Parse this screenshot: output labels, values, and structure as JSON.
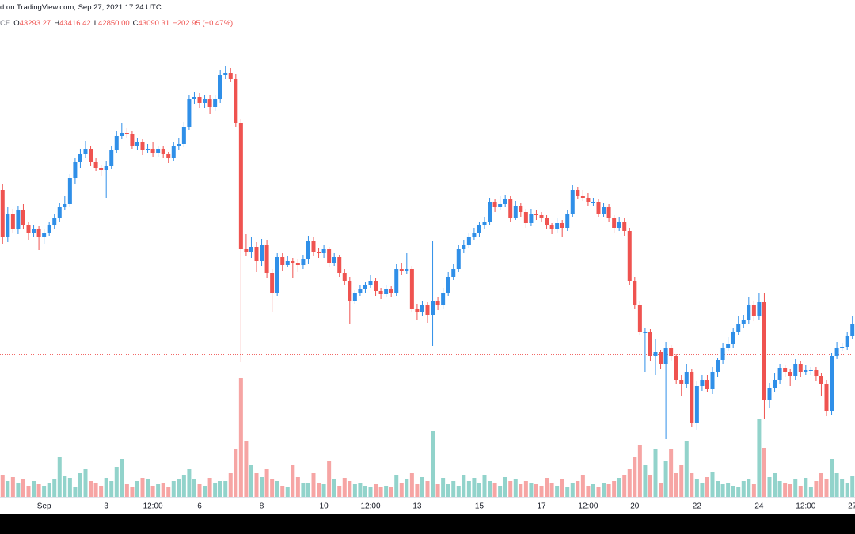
{
  "chart_data": {
    "type": "candlestick",
    "source_line": "d on TradingView.com, Sep 27, 2021 17:24 UTC",
    "symbol": "CE",
    "legend": [
      {
        "key": "O",
        "value": "43293.27"
      },
      {
        "key": "H",
        "value": "43416.42"
      },
      {
        "key": "L",
        "value": "42850.00"
      },
      {
        "key": "C",
        "value": "43090.31"
      }
    ],
    "change": "−202.95 (−0.47%)",
    "last_price": 43090.31,
    "ylim": [
      39300,
      54300
    ],
    "volume_ylim": [
      0,
      160
    ],
    "up_color": "#2f8fe8",
    "down_color": "#ef5350",
    "volume_up_color": "#92d3cb",
    "volume_down_color": "#f6a5a4",
    "categories": [
      null,
      null,
      null,
      null,
      null,
      null,
      null,
      null,
      "Sep",
      null,
      null,
      null,
      null,
      null,
      null,
      null,
      null,
      null,
      null,
      null,
      "3",
      null,
      null,
      null,
      null,
      null,
      null,
      null,
      null,
      "12:00",
      null,
      null,
      null,
      null,
      null,
      null,
      null,
      null,
      "6",
      null,
      null,
      null,
      null,
      null,
      null,
      null,
      null,
      null,
      null,
      null,
      "8",
      null,
      null,
      null,
      null,
      null,
      null,
      null,
      null,
      null,
      null,
      null,
      "10",
      null,
      null,
      null,
      null,
      null,
      null,
      null,
      null,
      "12:00",
      null,
      null,
      null,
      null,
      null,
      null,
      null,
      null,
      "13",
      null,
      null,
      null,
      null,
      null,
      null,
      null,
      null,
      null,
      null,
      null,
      "15",
      null,
      null,
      null,
      null,
      null,
      null,
      null,
      null,
      null,
      null,
      null,
      "17",
      null,
      null,
      null,
      null,
      null,
      null,
      null,
      null,
      "12:00",
      null,
      null,
      null,
      null,
      null,
      null,
      null,
      null,
      "20",
      null,
      null,
      null,
      null,
      null,
      null,
      null,
      null,
      null,
      null,
      null,
      "22",
      null,
      null,
      null,
      null,
      null,
      null,
      null,
      null,
      null,
      null,
      null,
      "24",
      null,
      null,
      null,
      null,
      null,
      null,
      null,
      null,
      "12:00",
      null,
      null,
      null,
      null,
      null,
      null,
      null,
      null,
      "27"
    ],
    "ohlc": [
      [
        48300,
        48500,
        46600,
        46800
      ],
      [
        46800,
        47750,
        46650,
        47550
      ],
      [
        47550,
        47700,
        46950,
        47050
      ],
      [
        47050,
        47800,
        46900,
        47675
      ],
      [
        47675,
        47850,
        47050,
        47175
      ],
      [
        47175,
        47300,
        46700,
        46925
      ],
      [
        46925,
        47200,
        46800,
        47050
      ],
      [
        47050,
        47150,
        46400,
        46800
      ],
      [
        46800,
        47050,
        46600,
        46925
      ],
      [
        46925,
        47300,
        46850,
        47175
      ],
      [
        47175,
        47550,
        47050,
        47425
      ],
      [
        47425,
        47900,
        47300,
        47750
      ],
      [
        47750,
        48100,
        47650,
        47850
      ],
      [
        47850,
        48800,
        47750,
        48675
      ],
      [
        48675,
        49300,
        48500,
        49175
      ],
      [
        49175,
        49600,
        49000,
        49425
      ],
      [
        49425,
        49850,
        49300,
        49600
      ],
      [
        49600,
        49700,
        49050,
        49175
      ],
      [
        49175,
        49300,
        48900,
        49000
      ],
      [
        49000,
        49100,
        48750,
        48925
      ],
      [
        48925,
        49200,
        48050,
        49050
      ],
      [
        49050,
        49700,
        48950,
        49550
      ],
      [
        49550,
        50150,
        49450,
        50000
      ],
      [
        50000,
        50425,
        49900,
        50100
      ],
      [
        50100,
        50250,
        49950,
        50050
      ],
      [
        50050,
        50150,
        49600,
        49675
      ],
      [
        49675,
        49950,
        49550,
        49800
      ],
      [
        49800,
        49900,
        49400,
        49550
      ],
      [
        49550,
        49750,
        49450,
        49600
      ],
      [
        49600,
        49800,
        49350,
        49475
      ],
      [
        49475,
        49700,
        49350,
        49600
      ],
      [
        49600,
        49700,
        49300,
        49425
      ],
      [
        49425,
        49500,
        49150,
        49300
      ],
      [
        49300,
        49800,
        49200,
        49675
      ],
      [
        49675,
        49950,
        49550,
        49750
      ],
      [
        49750,
        50450,
        49650,
        50300
      ],
      [
        50300,
        51300,
        50200,
        51175
      ],
      [
        51175,
        51400,
        51000,
        51250
      ],
      [
        51250,
        51350,
        50900,
        51050
      ],
      [
        51050,
        51300,
        50900,
        51175
      ],
      [
        51175,
        51300,
        50700,
        50925
      ],
      [
        50925,
        51300,
        50800,
        51175
      ],
      [
        51175,
        52100,
        51050,
        51925
      ],
      [
        51925,
        52225,
        51800,
        52000
      ],
      [
        52000,
        52150,
        51700,
        51800
      ],
      [
        51800,
        51950,
        50300,
        50425
      ],
      [
        50425,
        50550,
        42875,
        46425
      ],
      [
        46425,
        46900,
        46200,
        46350
      ],
      [
        46350,
        46800,
        46150,
        46500
      ],
      [
        46500,
        46650,
        45700,
        46050
      ],
      [
        46050,
        46750,
        45900,
        46550
      ],
      [
        46550,
        46700,
        45500,
        45675
      ],
      [
        45675,
        45800,
        44450,
        45050
      ],
      [
        45050,
        46300,
        44950,
        46175
      ],
      [
        46175,
        46300,
        45750,
        45925
      ],
      [
        45925,
        46200,
        45850,
        46050
      ],
      [
        46050,
        46150,
        45500,
        46000
      ],
      [
        46000,
        46100,
        45700,
        45925
      ],
      [
        45925,
        46250,
        45800,
        46100
      ],
      [
        46100,
        46850,
        45950,
        46675
      ],
      [
        46675,
        46800,
        46200,
        46350
      ],
      [
        46350,
        46450,
        46150,
        46300
      ],
      [
        46300,
        46550,
        46150,
        46425
      ],
      [
        46425,
        46500,
        45850,
        46000
      ],
      [
        46000,
        46300,
        45900,
        46175
      ],
      [
        46175,
        46250,
        45550,
        45675
      ],
      [
        45675,
        45800,
        45300,
        45425
      ],
      [
        45425,
        45550,
        44050,
        44800
      ],
      [
        44800,
        45150,
        44700,
        45050
      ],
      [
        45050,
        45300,
        44950,
        45175
      ],
      [
        45175,
        45400,
        45050,
        45300
      ],
      [
        45300,
        45600,
        45200,
        45425
      ],
      [
        45425,
        45500,
        44950,
        45100
      ],
      [
        45100,
        45200,
        44850,
        45000
      ],
      [
        45000,
        45300,
        44900,
        45175
      ],
      [
        45175,
        45250,
        44900,
        45050
      ],
      [
        45050,
        45950,
        44950,
        45800
      ],
      [
        45800,
        46000,
        45600,
        45750
      ],
      [
        45750,
        46300,
        45650,
        45800
      ],
      [
        45800,
        45900,
        44450,
        44550
      ],
      [
        44550,
        44700,
        44200,
        44425
      ],
      [
        44425,
        44800,
        44300,
        44675
      ],
      [
        44675,
        44750,
        44100,
        44350
      ],
      [
        44350,
        46675,
        43375,
        44800
      ],
      [
        44800,
        44900,
        44500,
        44675
      ],
      [
        44675,
        45200,
        44550,
        45050
      ],
      [
        45050,
        45700,
        44950,
        45550
      ],
      [
        45550,
        45950,
        45450,
        45800
      ],
      [
        45800,
        46550,
        45700,
        46425
      ],
      [
        46425,
        46700,
        46300,
        46550
      ],
      [
        46550,
        46950,
        46450,
        46800
      ],
      [
        46800,
        47100,
        46700,
        46925
      ],
      [
        46925,
        47300,
        46800,
        47175
      ],
      [
        47175,
        47450,
        47050,
        47300
      ],
      [
        47300,
        48050,
        47200,
        47925
      ],
      [
        47925,
        48000,
        47600,
        47750
      ],
      [
        47750,
        48100,
        47650,
        47850
      ],
      [
        47850,
        48150,
        47750,
        48000
      ],
      [
        48000,
        48100,
        47300,
        47425
      ],
      [
        47425,
        47950,
        47350,
        47800
      ],
      [
        47800,
        47900,
        47450,
        47600
      ],
      [
        47600,
        47700,
        47100,
        47250
      ],
      [
        47250,
        47700,
        47150,
        47550
      ],
      [
        47550,
        47650,
        47350,
        47500
      ],
      [
        47500,
        47600,
        47300,
        47425
      ],
      [
        47425,
        47500,
        47050,
        47175
      ],
      [
        47175,
        47250,
        46900,
        47050
      ],
      [
        47050,
        47400,
        46950,
        47250
      ],
      [
        47250,
        47350,
        46800,
        47100
      ],
      [
        47100,
        47650,
        47000,
        47550
      ],
      [
        47550,
        48450,
        47450,
        48300
      ],
      [
        48300,
        48400,
        48000,
        48100
      ],
      [
        48100,
        48300,
        47950,
        48050
      ],
      [
        48050,
        48200,
        47800,
        47925
      ],
      [
        47925,
        48050,
        47800,
        47925
      ],
      [
        47925,
        48000,
        47450,
        47550
      ],
      [
        47550,
        47900,
        47450,
        47750
      ],
      [
        47750,
        47850,
        47300,
        47425
      ],
      [
        47425,
        47500,
        46950,
        47100
      ],
      [
        47100,
        47450,
        47000,
        47300
      ],
      [
        47300,
        47400,
        46850,
        47000
      ],
      [
        47000,
        47100,
        45300,
        45425
      ],
      [
        45425,
        45550,
        44550,
        44675
      ],
      [
        44675,
        44800,
        43700,
        43800
      ],
      [
        43800,
        43950,
        42550,
        43800
      ],
      [
        43800,
        43900,
        42900,
        43050
      ],
      [
        43050,
        43600,
        42450,
        43175
      ],
      [
        43175,
        43250,
        42650,
        42800
      ],
      [
        42800,
        43500,
        40425,
        43300
      ],
      [
        43300,
        43400,
        42900,
        43050
      ],
      [
        43050,
        43100,
        42150,
        42300
      ],
      [
        42300,
        42450,
        41800,
        42175
      ],
      [
        42175,
        42800,
        42050,
        42550
      ],
      [
        42550,
        42650,
        40800,
        40925
      ],
      [
        40925,
        42250,
        40700,
        42100
      ],
      [
        42100,
        42450,
        41950,
        42300
      ],
      [
        42300,
        42450,
        41900,
        42000
      ],
      [
        42000,
        42700,
        41850,
        42550
      ],
      [
        42550,
        43000,
        42400,
        42925
      ],
      [
        42925,
        43450,
        42800,
        43300
      ],
      [
        43300,
        43650,
        43200,
        43425
      ],
      [
        43425,
        43950,
        43300,
        43800
      ],
      [
        43800,
        44300,
        43700,
        44050
      ],
      [
        44050,
        44350,
        43950,
        44175
      ],
      [
        44175,
        44900,
        44050,
        44675
      ],
      [
        44675,
        44800,
        44150,
        44300
      ],
      [
        44300,
        45050,
        44200,
        44750
      ],
      [
        44750,
        45050,
        41050,
        41675
      ],
      [
        41675,
        42200,
        41400,
        42050
      ],
      [
        42050,
        42500,
        41900,
        42300
      ],
      [
        42300,
        42800,
        42150,
        42675
      ],
      [
        42675,
        42750,
        42400,
        42550
      ],
      [
        42550,
        42650,
        42100,
        42425
      ],
      [
        42425,
        42950,
        42300,
        42800
      ],
      [
        42800,
        42900,
        42400,
        42550
      ],
      [
        42550,
        42750,
        42450,
        42600
      ],
      [
        42600,
        42700,
        42450,
        42600
      ],
      [
        42600,
        42700,
        42250,
        42425
      ],
      [
        42425,
        42500,
        41800,
        42175
      ],
      [
        42175,
        42300,
        41150,
        41300
      ],
      [
        41300,
        43150,
        41200,
        43050
      ],
      [
        43050,
        43500,
        42950,
        43300
      ],
      [
        43300,
        43450,
        43200,
        43350
      ],
      [
        43350,
        43800,
        43250,
        43675
      ],
      [
        43675,
        44300,
        43600,
        44050
      ]
    ],
    "volume": [
      28,
      20,
      25,
      18,
      22,
      14,
      20,
      16,
      14,
      18,
      22,
      50,
      26,
      24,
      12,
      30,
      35,
      20,
      18,
      14,
      24,
      20,
      38,
      48,
      16,
      12,
      20,
      24,
      22,
      14,
      16,
      18,
      12,
      20,
      22,
      28,
      35,
      22,
      16,
      14,
      24,
      18,
      20,
      20,
      30,
      60,
      150,
      70,
      40,
      30,
      25,
      35,
      22,
      20,
      14,
      12,
      40,
      25,
      18,
      18,
      30,
      18,
      16,
      45,
      22,
      14,
      24,
      20,
      16,
      18,
      14,
      12,
      16,
      12,
      14,
      12,
      28,
      18,
      22,
      30,
      16,
      25,
      20,
      83,
      16,
      24,
      16,
      20,
      14,
      28,
      20,
      24,
      18,
      28,
      20,
      18,
      14,
      25,
      20,
      22,
      16,
      20,
      18,
      16,
      14,
      24,
      18,
      14,
      22,
      12,
      18,
      20,
      28,
      14,
      16,
      12,
      18,
      16,
      20,
      24,
      28,
      35,
      50,
      65,
      40,
      28,
      60,
      18,
      45,
      60,
      30,
      40,
      70,
      30,
      22,
      18,
      25,
      32,
      20,
      16,
      18,
      14,
      12,
      20,
      22,
      16,
      98,
      62,
      25,
      30,
      20,
      18,
      16,
      22,
      14,
      24,
      12,
      20,
      30,
      22,
      48,
      30,
      22,
      18,
      26
    ]
  }
}
